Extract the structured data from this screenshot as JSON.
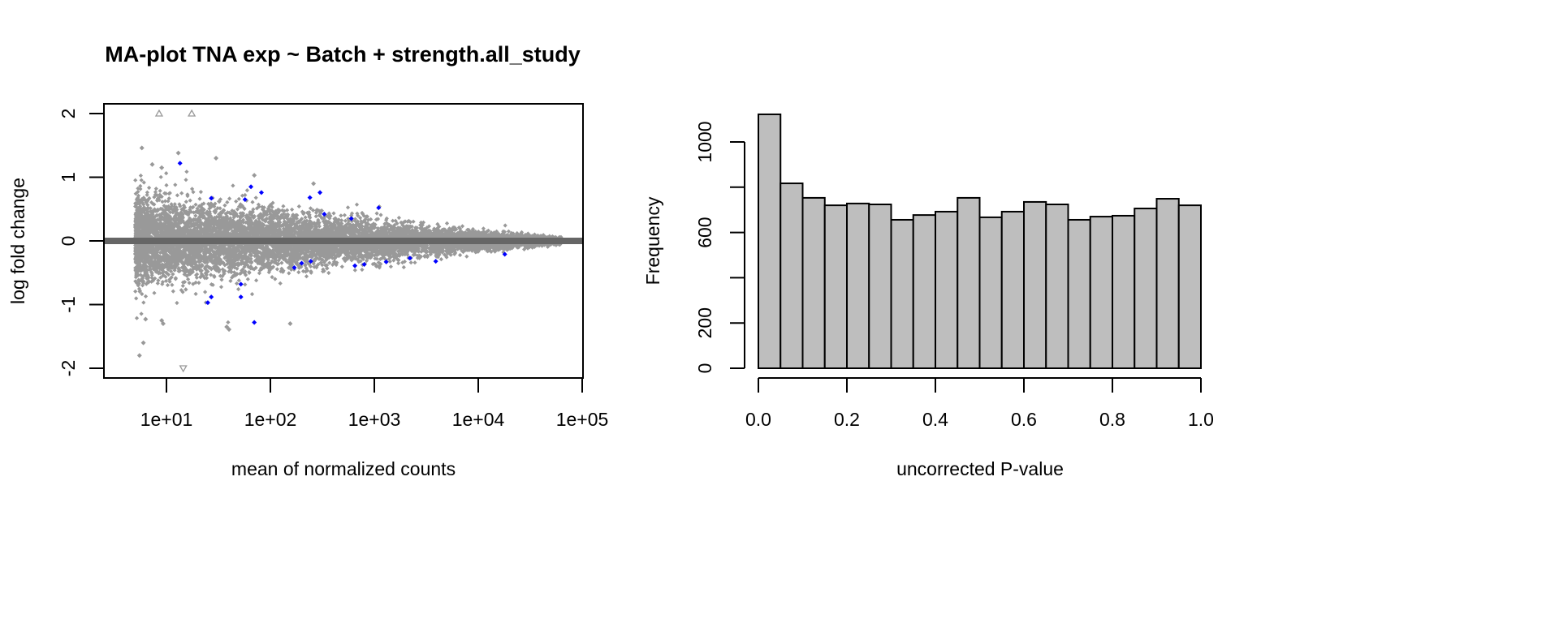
{
  "chart_data": [
    {
      "type": "scatter",
      "title": "MA-plot TNA exp ~ Batch + strength.all_study",
      "xlabel": "mean of normalized counts",
      "ylabel": "log fold change",
      "x_scale": "log10",
      "xlim_log10": [
        0.4,
        5.1
      ],
      "ylim": [
        -2.1,
        2.1
      ],
      "x_ticks": [
        {
          "value": 10,
          "label": "1e+01"
        },
        {
          "value": 100,
          "label": "1e+02"
        },
        {
          "value": 1000,
          "label": "1e+03"
        },
        {
          "value": 10000,
          "label": "1e+04"
        },
        {
          "value": 100000,
          "label": "1e+05"
        }
      ],
      "y_ticks": [
        {
          "value": -2,
          "label": "-2"
        },
        {
          "value": -1,
          "label": "-1"
        },
        {
          "value": 0,
          "label": "0"
        },
        {
          "value": 1,
          "label": "1"
        },
        {
          "value": 2,
          "label": "2"
        }
      ],
      "hline": {
        "y": 0,
        "color": "#666666"
      },
      "colors": {
        "nonsignificant": "#999999",
        "significant": "#0000ff"
      },
      "cloud_description": "Dense gray point cloud centered at 0; spread about ±0.5 at low counts (~5) narrowing to ±0.1 near 5e4",
      "series": [
        {
          "name": "significant",
          "color": "#0000ff",
          "points": [
            [
              13.5,
              1.22
            ],
            [
              27,
              0.67
            ],
            [
              57,
              0.65
            ],
            [
              65,
              0.85
            ],
            [
              82,
              0.76
            ],
            [
              240,
              0.68
            ],
            [
              300,
              0.76
            ],
            [
              1100,
              0.52
            ],
            [
              330,
              0.42
            ],
            [
              600,
              0.35
            ],
            [
              27,
              -0.88
            ],
            [
              52,
              -0.68
            ],
            [
              52,
              -0.88
            ],
            [
              70,
              -1.28
            ],
            [
              25,
              -0.97
            ],
            [
              245,
              -0.32
            ],
            [
              1300,
              -0.33
            ],
            [
              170,
              -0.42
            ],
            [
              200,
              -0.35
            ],
            [
              2200,
              -0.27
            ],
            [
              3900,
              -0.32
            ],
            [
              18000,
              -0.21
            ],
            [
              650,
              -0.39
            ],
            [
              800,
              -0.37
            ]
          ]
        },
        {
          "name": "outliers-gray",
          "color": "#999999",
          "points": [
            [
              5.8,
              1.46
            ],
            [
              13,
              1.38
            ],
            [
              30,
              1.3
            ],
            [
              7.3,
              1.2
            ],
            [
              9,
              1.15
            ],
            [
              70,
              1.03
            ],
            [
              260,
              0.9
            ],
            [
              5.5,
              -1.8
            ],
            [
              6,
              -1.6
            ],
            [
              6.3,
              -1.23
            ],
            [
              9,
              -1.25
            ],
            [
              9.3,
              -1.3
            ],
            [
              38,
              -1.35
            ],
            [
              40,
              -1.39
            ],
            [
              155,
              -1.3
            ]
          ]
        },
        {
          "name": "clipped",
          "color": "#999999",
          "points": [
            {
              "x": 8.5,
              "y": 2,
              "marker": "triangle-up"
            },
            {
              "x": 17.5,
              "y": 2,
              "marker": "triangle-up"
            },
            {
              "x": 14.5,
              "y": -2,
              "marker": "triangle-down"
            }
          ]
        }
      ]
    },
    {
      "type": "bar",
      "subtype": "histogram",
      "title": "",
      "xlabel": "uncorrected P-value",
      "ylabel": "Frequency",
      "xlim": [
        0,
        1
      ],
      "ylim": [
        0,
        1130
      ],
      "bin_width": 0.05,
      "bar_color": "#bebebe",
      "edge_color": "#000000",
      "categories": [
        "0.00-0.05",
        "0.05-0.10",
        "0.10-0.15",
        "0.15-0.20",
        "0.20-0.25",
        "0.25-0.30",
        "0.30-0.35",
        "0.35-0.40",
        "0.40-0.45",
        "0.45-0.50",
        "0.50-0.55",
        "0.55-0.60",
        "0.60-0.65",
        "0.65-0.70",
        "0.70-0.75",
        "0.75-0.80",
        "0.80-0.85",
        "0.85-0.90",
        "0.90-0.95",
        "0.95-1.00"
      ],
      "values": [
        1122,
        817,
        753,
        720,
        728,
        724,
        656,
        677,
        692,
        753,
        667,
        692,
        735,
        724,
        656,
        670,
        674,
        706,
        749,
        720
      ],
      "x_ticks": [
        {
          "value": 0.0,
          "label": "0.0"
        },
        {
          "value": 0.2,
          "label": "0.2"
        },
        {
          "value": 0.4,
          "label": "0.4"
        },
        {
          "value": 0.6,
          "label": "0.6"
        },
        {
          "value": 0.8,
          "label": "0.8"
        },
        {
          "value": 1.0,
          "label": "1.0"
        }
      ],
      "y_ticks": [
        {
          "value": 0,
          "label": "0"
        },
        {
          "value": 200,
          "label": "200"
        },
        {
          "value": 400,
          "label": ""
        },
        {
          "value": 600,
          "label": "600"
        },
        {
          "value": 800,
          "label": ""
        },
        {
          "value": 1000,
          "label": "1000"
        }
      ]
    }
  ]
}
